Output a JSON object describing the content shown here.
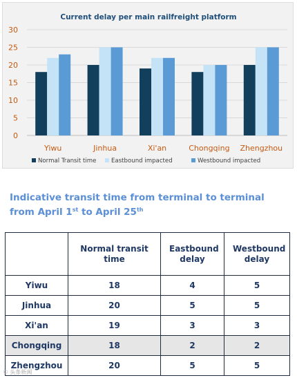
{
  "chart_data": {
    "type": "bar",
    "title": "Current delay per main railfreight platform",
    "categories": [
      "Yiwu",
      "Jinhua",
      "Xi'an",
      "Chongqing",
      "Zhengzhou"
    ],
    "series": [
      {
        "name": "Normal Transit time",
        "values": [
          18,
          20,
          19,
          18,
          20
        ],
        "color": "#123f5c"
      },
      {
        "name": "Eastbound impacted",
        "values": [
          22,
          25,
          22,
          20,
          25
        ],
        "color": "#c5e3f6"
      },
      {
        "name": "Westbound impacted",
        "values": [
          23,
          25,
          22,
          20,
          25
        ],
        "color": "#5b9bd5"
      }
    ],
    "ylim": [
      0,
      30
    ],
    "yticks": [
      0,
      5,
      10,
      15,
      20,
      25,
      30
    ],
    "grid": true,
    "legend_position": "bottom",
    "tick_label_color": "#c55a11"
  },
  "headline": {
    "line1": "Indicative transit time from terminal to terminal",
    "line2_prefix": "from April 1",
    "sup1": "st",
    "line2_middle": " to April 25",
    "sup2": "th"
  },
  "table": {
    "headers": [
      "",
      "Normal transit time",
      "Eastbound delay",
      "Westbound delay"
    ],
    "rows": [
      {
        "city": "Yiwu",
        "normal": "18",
        "east": "4",
        "west": "5"
      },
      {
        "city": "Jinhua",
        "normal": "20",
        "east": "5",
        "west": "5"
      },
      {
        "city": "Xi'an",
        "normal": "19",
        "east": "3",
        "west": "3"
      },
      {
        "city": "Chongqing",
        "normal": "18",
        "east": "2",
        "west": "2"
      },
      {
        "city": "Zhengzhou",
        "normal": "20",
        "east": "5",
        "west": "5"
      }
    ]
  },
  "watermark": "© 头条新闻"
}
